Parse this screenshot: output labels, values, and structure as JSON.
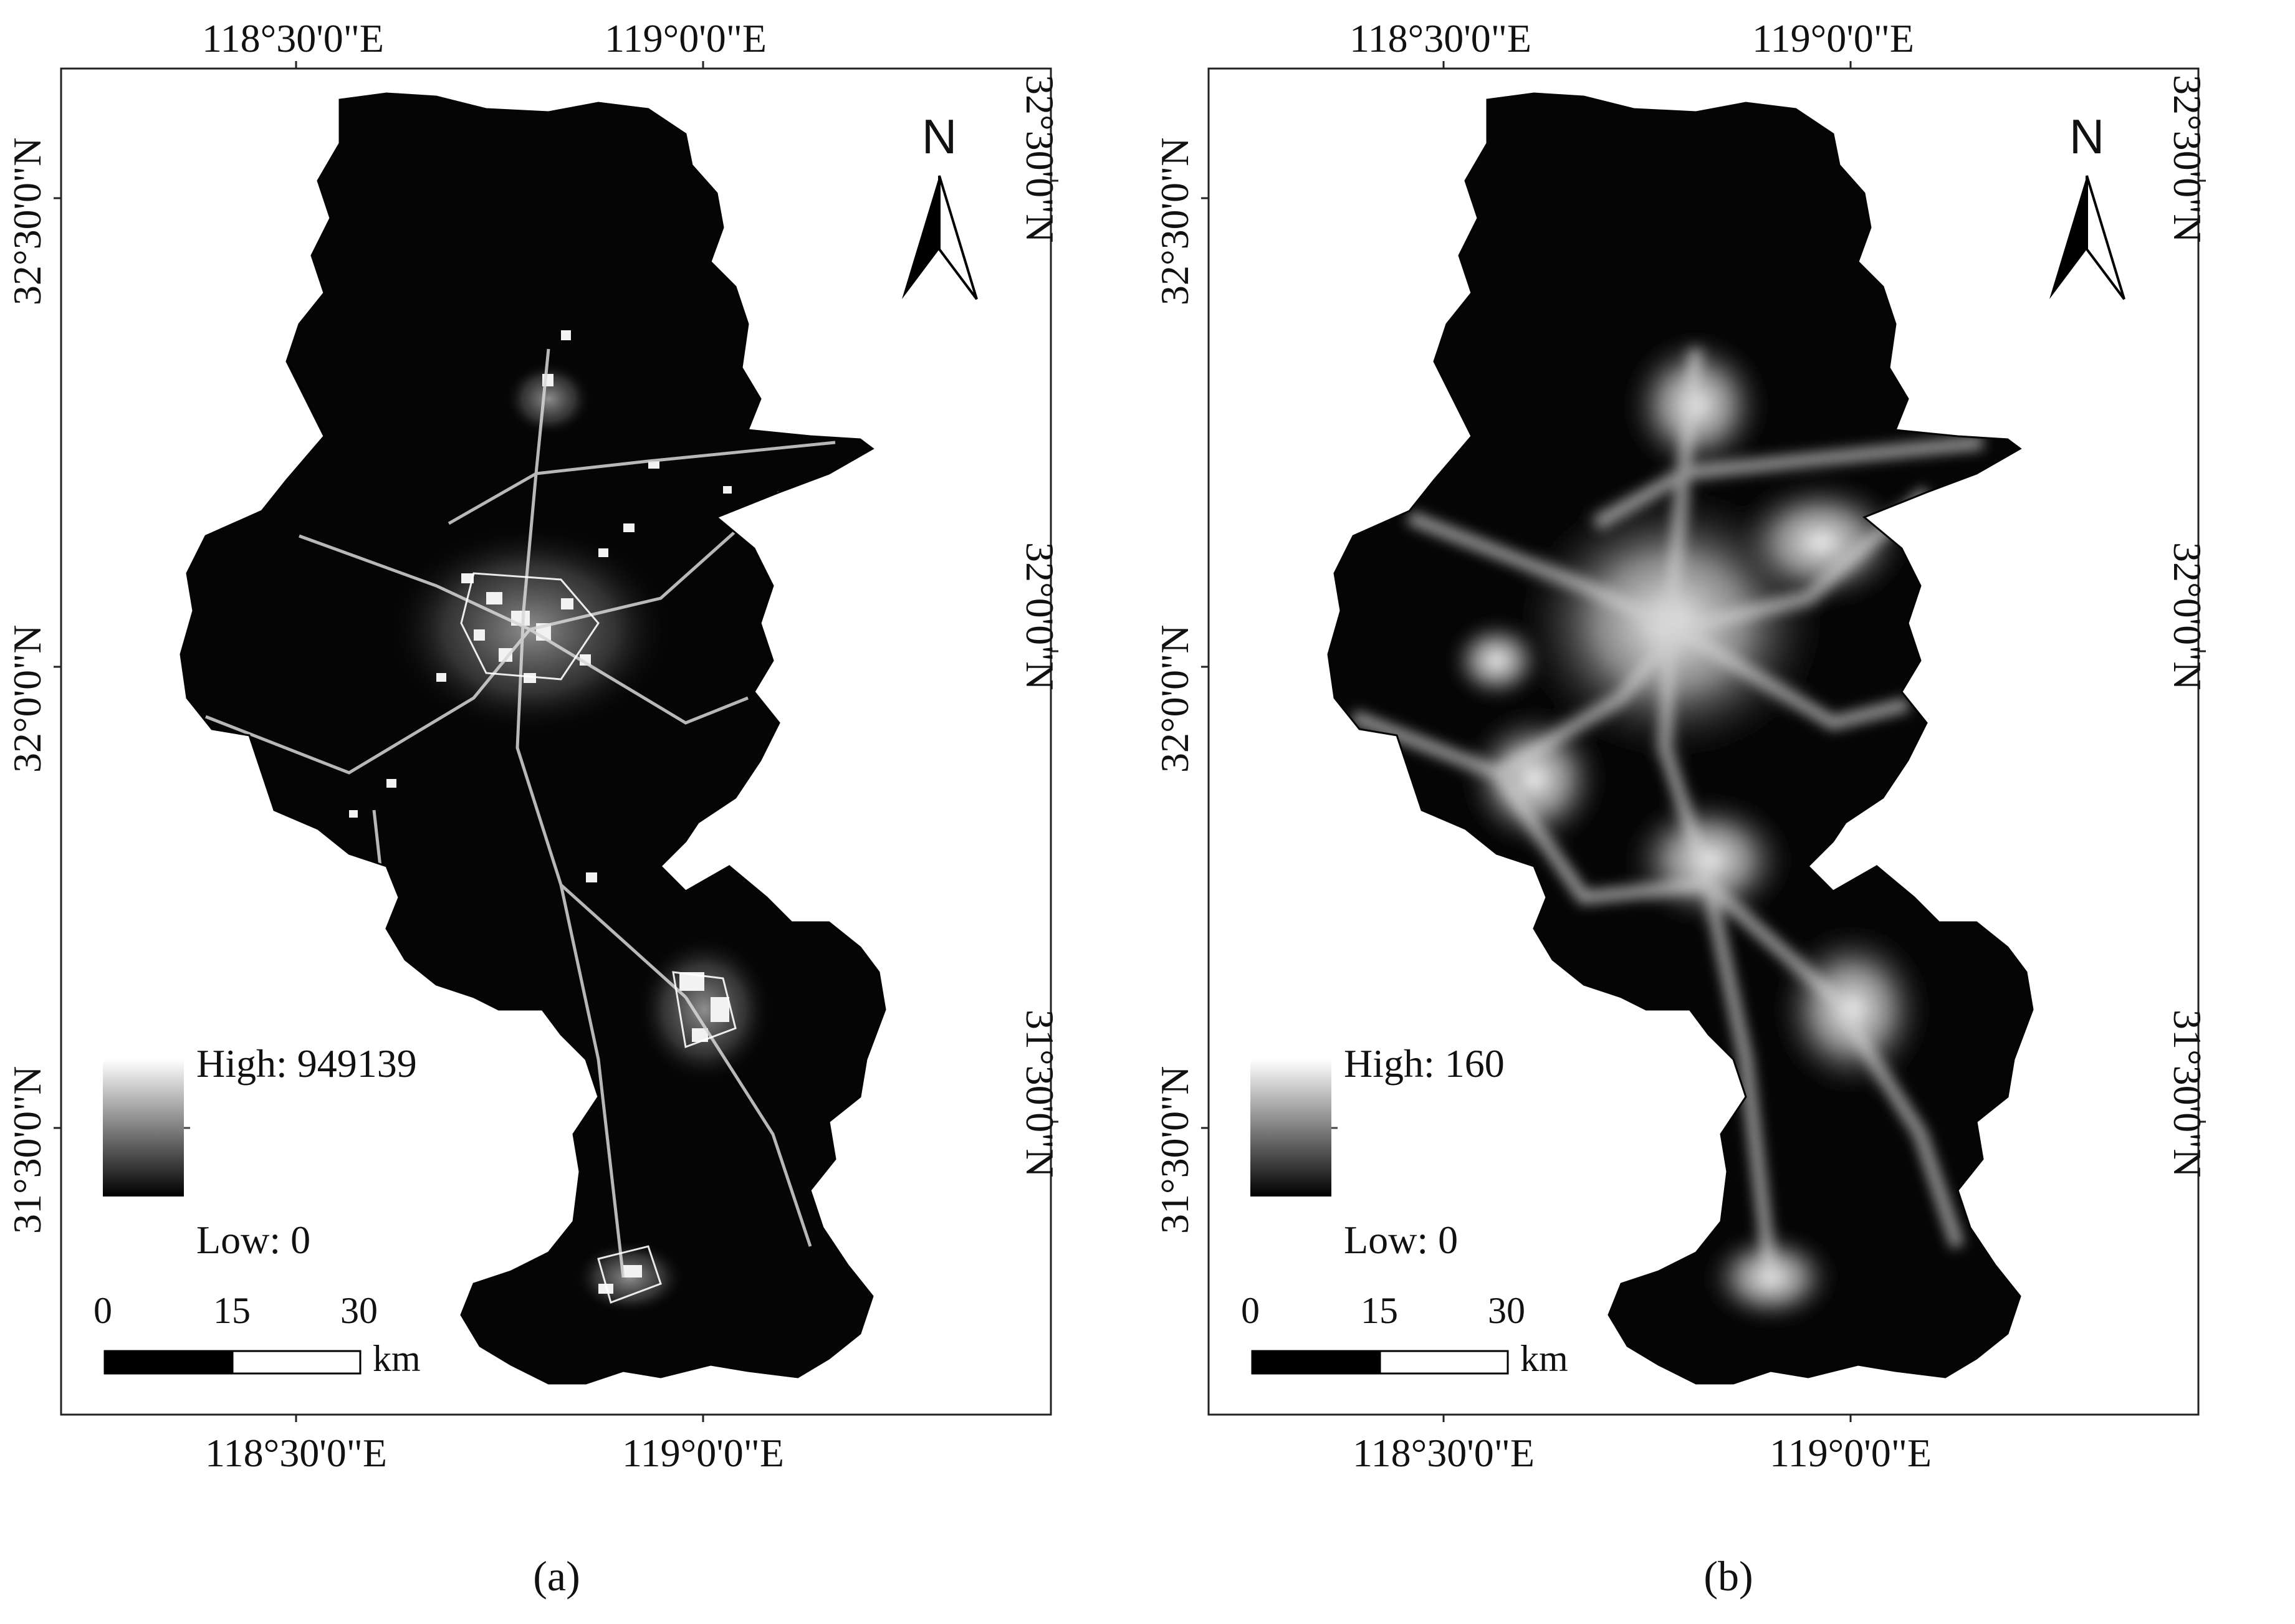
{
  "panels": [
    {
      "id": "a",
      "caption": "(a)",
      "lon_top": [
        "118°30'0\"E",
        "119°0'0\"E"
      ],
      "lon_bottom": [
        "118°30'0\"E",
        "119°0'0\"E"
      ],
      "lat_left": [
        "32°30'0\"N",
        "32°0'0\"N",
        "31°30'0\"N"
      ],
      "lat_right": [
        "32°30'0\"N",
        "32°0'0\"N",
        "31°30'0\"N"
      ],
      "legend": {
        "high": "High: 949139",
        "low": "Low: 0"
      },
      "scale": {
        "ticks": [
          "0",
          "15",
          "30"
        ],
        "unit": "km"
      },
      "north": "N",
      "map_style": "sharp"
    },
    {
      "id": "b",
      "caption": "(b)",
      "lon_top": [
        "118°30'0\"E",
        "119°0'0\"E"
      ],
      "lon_bottom": [
        "118°30'0\"E",
        "119°0'0\"E"
      ],
      "lat_left": [
        "32°30'0\"N",
        "32°0'0\"N",
        "31°30'0\"N"
      ],
      "lat_right": [
        "32°30'0\"N",
        "32°0'0\"N",
        "31°30'0\"N"
      ],
      "legend": {
        "high": "High: 160",
        "low": "Low: 0"
      },
      "scale": {
        "ticks": [
          "0",
          "15",
          "30"
        ],
        "unit": "km"
      },
      "north": "N",
      "map_style": "blurred"
    }
  ],
  "colors": {
    "map_fill": "#050505",
    "lights": "#ffffff",
    "frame": "#222222"
  }
}
